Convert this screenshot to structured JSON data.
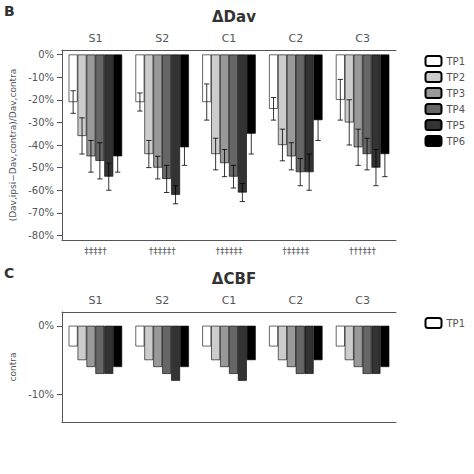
{
  "chart_data": [
    {
      "type": "bar",
      "title": "ΔDav",
      "ylabel": "(Dav,ipsi−Dav,contra)/Dav,contra",
      "categories": [
        "S1",
        "S2",
        "C1",
        "C2",
        "C3"
      ],
      "series": [
        {
          "name": "TP1",
          "color": "#ffffff",
          "values": [
            -21,
            -21,
            -21,
            -24,
            -20
          ],
          "errors": [
            5,
            4,
            8,
            5,
            9
          ]
        },
        {
          "name": "TP2",
          "color": "#cccccc",
          "values": [
            -36,
            -44,
            -44,
            -40,
            -30
          ],
          "errors": [
            8,
            6,
            7,
            7,
            10
          ]
        },
        {
          "name": "TP3",
          "color": "#999999",
          "values": [
            -45,
            -50,
            -48,
            -45,
            -41
          ],
          "errors": [
            7,
            5,
            6,
            6,
            8
          ]
        },
        {
          "name": "TP4",
          "color": "#666666",
          "values": [
            -47,
            -55,
            -54,
            -52,
            -44
          ],
          "errors": [
            8,
            6,
            5,
            6,
            7
          ]
        },
        {
          "name": "TP5",
          "color": "#333333",
          "values": [
            -54,
            -62,
            -61,
            -52,
            -50
          ],
          "errors": [
            6,
            4,
            4,
            8,
            8
          ]
        },
        {
          "name": "TP6",
          "color": "#000000",
          "values": [
            -45,
            -41,
            -35,
            -29,
            -44
          ],
          "errors": [
            7,
            8,
            9,
            9,
            10
          ]
        }
      ],
      "ylim": [
        -82,
        2
      ],
      "yticks": [
        {
          "value": 0,
          "label": "0%"
        },
        {
          "value": -10,
          "label": "-10%"
        },
        {
          "value": -20,
          "label": "-20%"
        },
        {
          "value": -30,
          "label": "-30%"
        },
        {
          "value": -40,
          "label": "-40%"
        },
        {
          "value": -50,
          "label": "-50%"
        },
        {
          "value": -60,
          "label": "-60%"
        },
        {
          "value": -70,
          "label": "-70%"
        },
        {
          "value": -80,
          "label": "-80%"
        }
      ],
      "grid": false,
      "legend": "right",
      "annotations": [
        {
          "text": "B"
        },
        {
          "category": "S1",
          "text": "‡‡‡‡†"
        },
        {
          "category": "S2",
          "text": "†‡‡‡‡†"
        },
        {
          "category": "C1",
          "text": "†‡‡‡‡‡"
        },
        {
          "category": "C2",
          "text": "†‡‡‡‡‡"
        },
        {
          "category": "C3",
          "text": "†††‡‡†"
        }
      ]
    },
    {
      "type": "bar",
      "title": "ΔCBF",
      "ylabel": "contra",
      "categories": [
        "S1",
        "S2",
        "C1",
        "C2",
        "C3"
      ],
      "series": [
        {
          "name": "TP1",
          "color": "#ffffff",
          "values": [
            -3,
            -3,
            -3,
            -3,
            -3
          ]
        },
        {
          "color": "#cccccc",
          "values": [
            -5,
            -5,
            -5,
            -5,
            -5
          ]
        },
        {
          "color": "#999999",
          "values": [
            -6,
            -6,
            -6,
            -6,
            -6
          ]
        },
        {
          "color": "#666666",
          "values": [
            -7,
            -7,
            -7,
            -7,
            -7
          ]
        },
        {
          "color": "#333333",
          "values": [
            -7,
            -8,
            -8,
            -7,
            -7
          ]
        },
        {
          "color": "#000000",
          "values": [
            -6,
            -6,
            -5,
            -5,
            -6
          ]
        }
      ],
      "ylim": [
        -14,
        2
      ],
      "yticks": [
        {
          "value": 0,
          "label": "0%"
        },
        {
          "value": -10,
          "label": "-10%"
        }
      ],
      "grid": false,
      "legend": "right",
      "annotations": [
        {
          "text": "C"
        }
      ]
    }
  ]
}
